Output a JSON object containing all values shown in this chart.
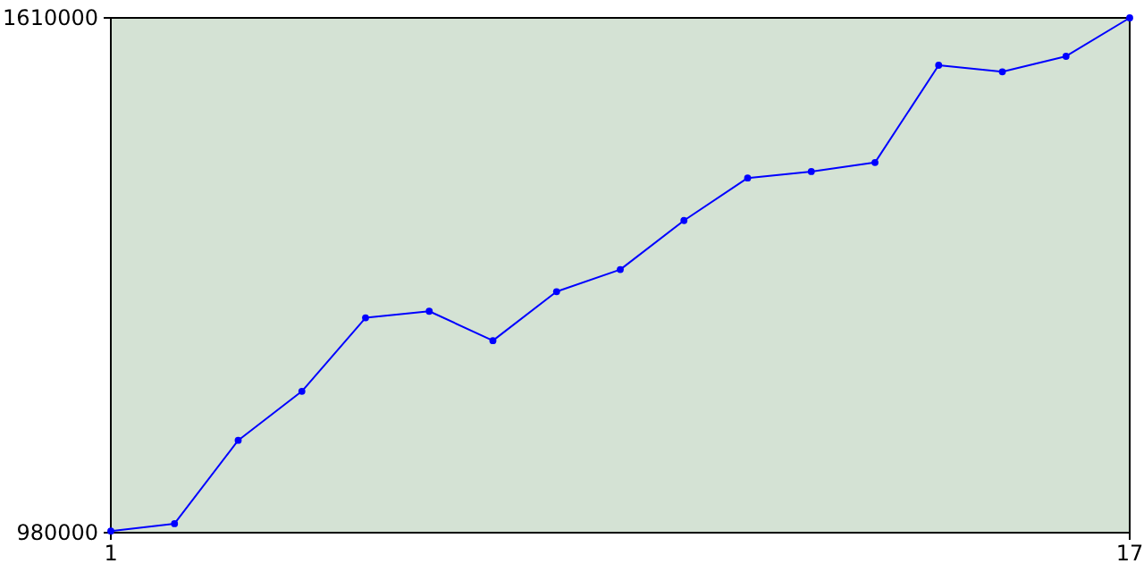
{
  "chart_data": {
    "type": "line",
    "x": [
      1,
      2,
      3,
      4,
      5,
      6,
      7,
      8,
      9,
      10,
      11,
      12,
      13,
      14,
      15,
      16,
      17
    ],
    "series": [
      {
        "color": "#0000ff",
        "values": [
          982000,
          991000,
          1093000,
          1153000,
          1243000,
          1251000,
          1215000,
          1275000,
          1302000,
          1362000,
          1414000,
          1422000,
          1433000,
          1552000,
          1544000,
          1563000,
          1610000
        ]
      }
    ],
    "xlim": [
      1,
      17
    ],
    "xticks": [
      1,
      17
    ],
    "ylim": [
      980000,
      1610000
    ],
    "yticks": [
      980000,
      1610000
    ],
    "grid": false,
    "marker": "circle",
    "line_style": "solid"
  }
}
